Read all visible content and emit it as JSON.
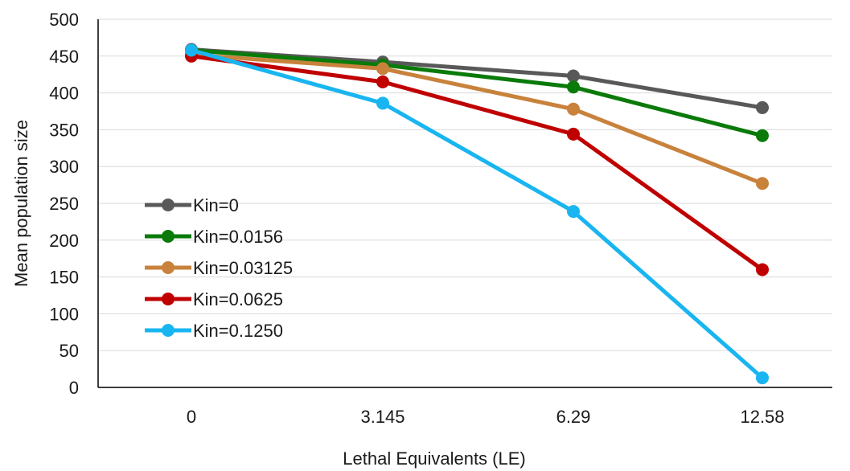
{
  "chart_data": {
    "type": "line",
    "title": "",
    "xlabel": "Lethal Equivalents (LE)",
    "ylabel": "Mean population size",
    "categories": [
      "0",
      "3.145",
      "6.29",
      "12.58"
    ],
    "ylim": [
      0,
      500
    ],
    "yticks": [
      "0",
      "50",
      "100",
      "150",
      "200",
      "250",
      "300",
      "350",
      "400",
      "450",
      "500"
    ],
    "grid": "horizontal",
    "legend_position": "left-middle",
    "series": [
      {
        "name": "Kin=0",
        "color": "#595959",
        "values": [
          459,
          442,
          423,
          380
        ]
      },
      {
        "name": "Kin=0.0156",
        "color": "#0a7a0a",
        "values": [
          458,
          438,
          408,
          342
        ]
      },
      {
        "name": "Kin=0.03125",
        "color": "#c8823c",
        "values": [
          452,
          433,
          378,
          277
        ]
      },
      {
        "name": "Kin=0.0625",
        "color": "#c00000",
        "values": [
          450,
          415,
          344,
          160
        ]
      },
      {
        "name": "Kin=0.1250",
        "color": "#19b5f0",
        "values": [
          458,
          386,
          239,
          13
        ]
      }
    ]
  }
}
